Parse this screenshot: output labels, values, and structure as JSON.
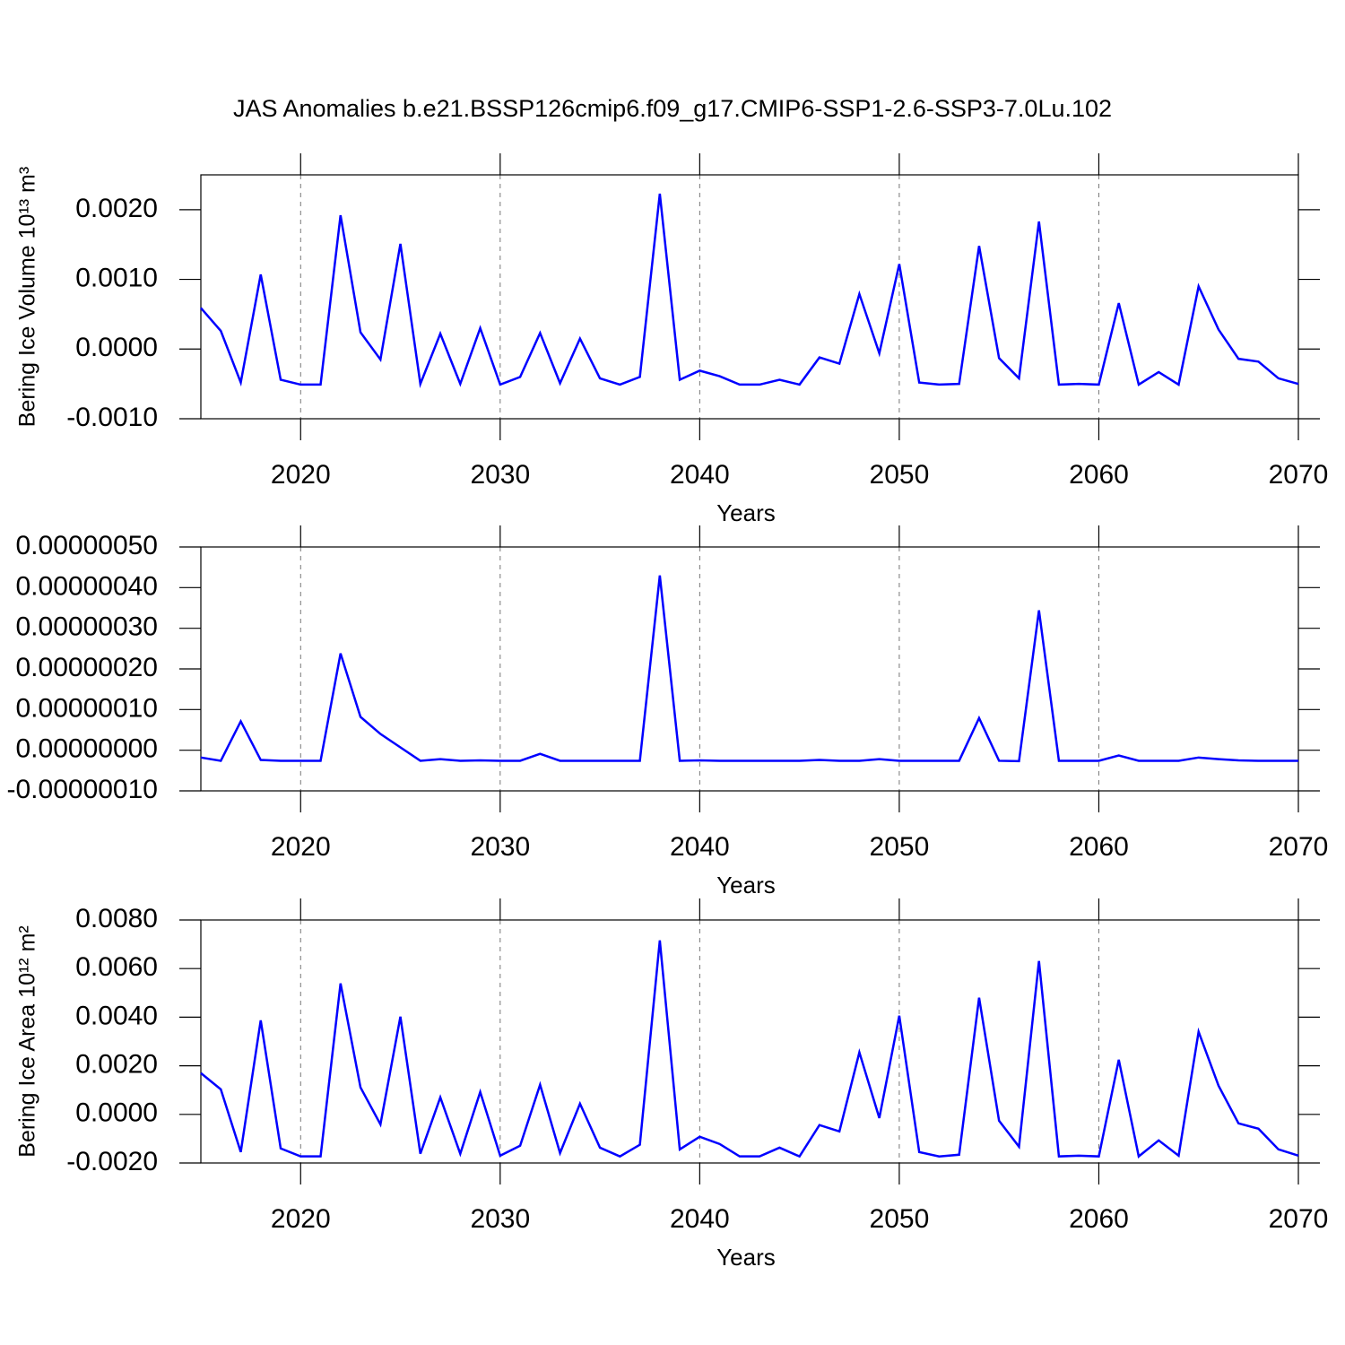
{
  "chart_data": [
    {
      "type": "line",
      "title": "JAS Anomalies b.e21.BSSP126cmip6.f09_g17.CMIP6-SSP1-2.6-SSP3-7.0Lu.102",
      "xlabel": "Years",
      "ylabel": "Bering Ice Volume 10¹³ m³",
      "x": [
        2015,
        2016,
        2017,
        2018,
        2019,
        2020,
        2021,
        2022,
        2023,
        2024,
        2025,
        2026,
        2027,
        2028,
        2029,
        2030,
        2031,
        2032,
        2033,
        2034,
        2035,
        2036,
        2037,
        2038,
        2039,
        2040,
        2041,
        2042,
        2043,
        2044,
        2045,
        2046,
        2047,
        2048,
        2049,
        2050,
        2051,
        2052,
        2053,
        2054,
        2055,
        2056,
        2057,
        2058,
        2059,
        2060,
        2061,
        2062,
        2063,
        2064,
        2065,
        2066,
        2067,
        2068,
        2069,
        2070
      ],
      "series": [
        {
          "color": "#0000ff",
          "values": [
            0.00059,
            0.00026,
            -0.00048,
            0.00107,
            -0.00044,
            -0.00051,
            -0.00051,
            0.00192,
            0.00024,
            -0.00015,
            0.00151,
            -0.0005,
            0.00022,
            -0.0005,
            0.0003,
            -0.00051,
            -0.0004,
            0.00023,
            -0.00049,
            0.00015,
            -0.00042,
            -0.00051,
            -0.0004,
            0.00223,
            -0.00044,
            -0.00031,
            -0.00039,
            -0.00051,
            -0.00051,
            -0.00044,
            -0.00051,
            -0.00012,
            -0.00021,
            0.00079,
            -6e-05,
            0.00122,
            -0.00048,
            -0.00051,
            -0.0005,
            0.00148,
            -0.00013,
            -0.00042,
            0.00183,
            -0.00051,
            -0.0005,
            -0.00051,
            0.00066,
            -0.00051,
            -0.00033,
            -0.00051,
            0.0009,
            0.00028,
            -0.00014,
            -0.00018,
            -0.00042,
            -0.0005
          ]
        }
      ],
      "xlim": [
        2015,
        2070
      ],
      "xticks": [
        2020,
        2030,
        2040,
        2050,
        2060,
        2070
      ],
      "ylim": [
        -0.001,
        0.0025
      ],
      "yticks": [
        {
          "value": -0.001,
          "label": "-0.0010"
        },
        {
          "value": 0,
          "label": "0.0000"
        },
        {
          "value": 0.001,
          "label": "0.0010"
        },
        {
          "value": 0.002,
          "label": "0.0020"
        }
      ],
      "grid": "x"
    },
    {
      "type": "line",
      "xlabel": "Years",
      "x": [
        2015,
        2016,
        2017,
        2018,
        2019,
        2020,
        2021,
        2022,
        2023,
        2024,
        2025,
        2026,
        2027,
        2028,
        2029,
        2030,
        2031,
        2032,
        2033,
        2034,
        2035,
        2036,
        2037,
        2038,
        2039,
        2040,
        2041,
        2042,
        2043,
        2044,
        2045,
        2046,
        2047,
        2048,
        2049,
        2050,
        2051,
        2052,
        2053,
        2054,
        2055,
        2056,
        2057,
        2058,
        2059,
        2060,
        2061,
        2062,
        2063,
        2064,
        2065,
        2066,
        2067,
        2068,
        2069,
        2070
      ],
      "series": [
        {
          "color": "#0000ff",
          "values": [
            -1.8e-08,
            -2.6e-08,
            7.1e-08,
            -2.4e-08,
            -2.6e-08,
            -2.6e-08,
            -2.6e-08,
            2.38e-07,
            8.2e-08,
            4e-08,
            7e-09,
            -2.6e-08,
            -2.2e-08,
            -2.6e-08,
            -2.5e-08,
            -2.6e-08,
            -2.6e-08,
            -9e-09,
            -2.6e-08,
            -2.6e-08,
            -2.6e-08,
            -2.6e-08,
            -2.6e-08,
            4.3e-07,
            -2.6e-08,
            -2.5e-08,
            -2.6e-08,
            -2.6e-08,
            -2.6e-08,
            -2.6e-08,
            -2.6e-08,
            -2.4e-08,
            -2.6e-08,
            -2.6e-08,
            -2.2e-08,
            -2.6e-08,
            -2.6e-08,
            -2.6e-08,
            -2.6e-08,
            7.9e-08,
            -2.6e-08,
            -2.7e-08,
            3.44e-07,
            -2.6e-08,
            -2.6e-08,
            -2.6e-08,
            -1.3e-08,
            -2.6e-08,
            -2.6e-08,
            -2.6e-08,
            -1.8e-08,
            -2.2e-08,
            -2.5e-08,
            -2.6e-08,
            -2.6e-08,
            -2.6e-08
          ]
        }
      ],
      "xlim": [
        2015,
        2070
      ],
      "xticks": [
        2020,
        2030,
        2040,
        2050,
        2060,
        2070
      ],
      "ylim": [
        -1e-07,
        5e-07
      ],
      "yticks": [
        {
          "value": -1e-07,
          "label": "-0.00000010"
        },
        {
          "value": 0,
          "label": "0.00000000"
        },
        {
          "value": 1e-07,
          "label": "0.00000010"
        },
        {
          "value": 2e-07,
          "label": "0.00000020"
        },
        {
          "value": 3e-07,
          "label": "0.00000030"
        },
        {
          "value": 4e-07,
          "label": "0.00000040"
        },
        {
          "value": 5e-07,
          "label": "0.00000050"
        }
      ],
      "grid": "x"
    },
    {
      "type": "line",
      "xlabel": "Years",
      "ylabel": "Bering Ice Area 10¹² m²",
      "x": [
        2015,
        2016,
        2017,
        2018,
        2019,
        2020,
        2021,
        2022,
        2023,
        2024,
        2025,
        2026,
        2027,
        2028,
        2029,
        2030,
        2031,
        2032,
        2033,
        2034,
        2035,
        2036,
        2037,
        2038,
        2039,
        2040,
        2041,
        2042,
        2043,
        2044,
        2045,
        2046,
        2047,
        2048,
        2049,
        2050,
        2051,
        2052,
        2053,
        2054,
        2055,
        2056,
        2057,
        2058,
        2059,
        2060,
        2061,
        2062,
        2063,
        2064,
        2065,
        2066,
        2067,
        2068,
        2069,
        2070
      ],
      "series": [
        {
          "color": "#0000ff",
          "values": [
            0.0017,
            0.00103,
            -0.00155,
            0.00387,
            -0.0014,
            -0.00173,
            -0.00173,
            0.00539,
            0.00111,
            -0.00041,
            0.00402,
            -0.00162,
            0.0007,
            -0.00162,
            0.00092,
            -0.0017,
            -0.00129,
            0.00122,
            -0.00159,
            0.00044,
            -0.00137,
            -0.00173,
            -0.00125,
            0.00716,
            -0.00144,
            -0.00092,
            -0.00122,
            -0.00173,
            -0.00173,
            -0.00137,
            -0.00173,
            -0.00044,
            -0.0007,
            0.00255,
            -0.00015,
            0.00406,
            -0.00155,
            -0.00173,
            -0.00166,
            0.0048,
            -0.00026,
            -0.00133,
            0.00631,
            -0.00173,
            -0.0017,
            -0.00173,
            0.00225,
            -0.00173,
            -0.00107,
            -0.0017,
            0.0034,
            0.00118,
            -0.00037,
            -0.00059,
            -0.00144,
            -0.0017
          ]
        }
      ],
      "xlim": [
        2015,
        2070
      ],
      "xticks": [
        2020,
        2030,
        2040,
        2050,
        2060,
        2070
      ],
      "ylim": [
        -0.002,
        0.008
      ],
      "yticks": [
        {
          "value": -0.002,
          "label": "-0.0020"
        },
        {
          "value": 0,
          "label": "0.0000"
        },
        {
          "value": 0.002,
          "label": "0.0020"
        },
        {
          "value": 0.004,
          "label": "0.0040"
        },
        {
          "value": 0.006,
          "label": "0.0060"
        },
        {
          "value": 0.008,
          "label": "0.0080"
        }
      ],
      "grid": "x"
    }
  ]
}
